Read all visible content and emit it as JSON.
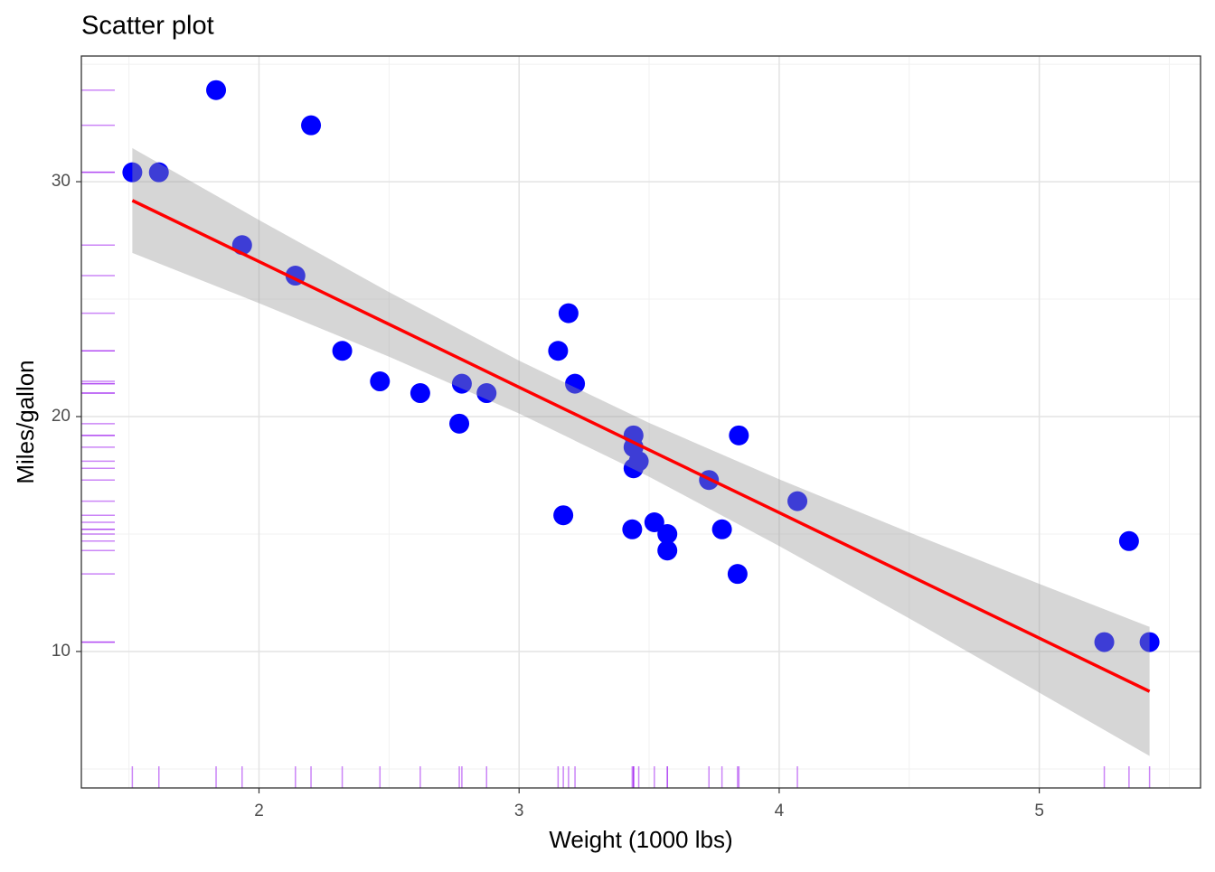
{
  "chart_data": {
    "type": "scatter",
    "title": "Scatter plot",
    "x_label": "Weight (1000 lbs)",
    "y_label": "Miles/gallon",
    "x": [
      2.62,
      2.875,
      2.32,
      3.215,
      3.44,
      3.46,
      3.57,
      3.19,
      3.15,
      3.44,
      3.44,
      4.07,
      3.73,
      3.78,
      5.25,
      5.424,
      5.345,
      2.2,
      1.615,
      1.835,
      2.465,
      3.52,
      3.435,
      3.84,
      3.845,
      1.935,
      2.14,
      1.513,
      3.17,
      2.77,
      3.57,
      2.78
    ],
    "values": [
      21.0,
      21.0,
      22.8,
      21.4,
      18.7,
      18.1,
      14.3,
      24.4,
      22.8,
      19.2,
      17.8,
      16.4,
      17.3,
      15.2,
      10.4,
      10.4,
      14.7,
      32.4,
      30.4,
      33.9,
      21.5,
      15.5,
      15.2,
      13.3,
      19.2,
      27.3,
      26.0,
      30.4,
      15.8,
      19.7,
      15.0,
      21.4
    ],
    "color": "#0000ff",
    "rug_color": "#a020f0",
    "fit": {
      "x": [
        1.513,
        2,
        2.5,
        3,
        3.5,
        4,
        4.5,
        5,
        5.424
      ],
      "y": [
        29.2,
        26.6,
        23.93,
        21.25,
        18.58,
        15.91,
        13.24,
        10.57,
        8.3
      ],
      "lower": [
        26.97,
        24.83,
        22.55,
        20.13,
        17.44,
        14.49,
        11.41,
        8.25,
        5.55
      ],
      "upper": [
        31.43,
        28.37,
        25.3,
        22.38,
        19.73,
        17.33,
        15.07,
        12.88,
        11.05
      ],
      "color": "#ff0000",
      "band_color": "#999999"
    },
    "xlim": [
      1.317,
      5.62
    ],
    "ylim": [
      4.19,
      35.35
    ],
    "xticks": [
      2,
      3,
      4,
      5
    ],
    "yticks": [
      10,
      20,
      30
    ],
    "xminor": [
      1.5,
      2.5,
      3.5,
      4.5,
      5.5
    ],
    "yminor": [
      5,
      15,
      25,
      35
    ],
    "grid": true
  }
}
